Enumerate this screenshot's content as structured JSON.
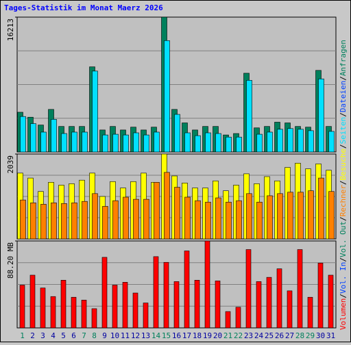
{
  "title": "Tages-Statistik im Monat Maerz 2026",
  "categories": [
    "1",
    "2",
    "3",
    "4",
    "5",
    "6",
    "7",
    "8",
    "9",
    "10",
    "11",
    "12",
    "13",
    "14",
    "15",
    "16",
    "17",
    "18",
    "19",
    "20",
    "21",
    "22",
    "23",
    "24",
    "25",
    "26",
    "27",
    "28",
    "29",
    "30",
    "31"
  ],
  "category_color": "#0000a0",
  "highlight_categories": [
    "1",
    "7",
    "8",
    "14",
    "15",
    "21",
    "22",
    "28",
    "29"
  ],
  "highlight_color": "#00805c",
  "legend_separator": "/",
  "legend_extra": [
    {
      "name": "Dateien",
      "color": "#0040ff"
    },
    {
      "name": "Vol. Out",
      "color": "#00805c"
    },
    {
      "name": "Vol. In",
      "color": "#0040ff"
    }
  ],
  "chart_data": [
    {
      "type": "bar",
      "ylim": [
        0,
        16213
      ],
      "yticks": [
        16213
      ],
      "series": [
        {
          "name": "Anfragen",
          "color": "#00805c",
          "values": [
            4777,
            4180,
            3241,
            5118,
            3071,
            3071,
            3071,
            10236,
            2644,
            3071,
            2644,
            2986,
            2644,
            2986,
            16213,
            5118,
            3497,
            2644,
            3071,
            3071,
            2047,
            2218,
            9468,
            2900,
            3071,
            3583,
            3497,
            3071,
            2986,
            9810,
            3071
          ]
        },
        {
          "name": "Seiten",
          "color": "#00e0ff",
          "values": [
            4265,
            3412,
            2388,
            3924,
            2218,
            2388,
            2388,
            9724,
            2047,
            2133,
            2047,
            2303,
            2047,
            2388,
            13392,
            4521,
            2303,
            1962,
            2303,
            2218,
            1791,
            1791,
            8615,
            2133,
            2388,
            2730,
            2815,
            2730,
            2559,
            8786,
            2474
          ]
        }
      ]
    },
    {
      "type": "bar",
      "ylim": [
        0,
        2039
      ],
      "yticks": [
        2039
      ],
      "series": [
        {
          "name": "Besuche",
          "color": "#ffff00",
          "values": [
            1581,
            1462,
            1139,
            1360,
            1292,
            1326,
            1411,
            1581,
            1020,
            1377,
            1224,
            1377,
            1581,
            1360,
            2039,
            1513,
            1343,
            1224,
            1224,
            1394,
            1156,
            1292,
            1564,
            1326,
            1496,
            1394,
            1717,
            1819,
            1683,
            1802,
            1649
          ]
        },
        {
          "name": "Rechner",
          "color": "#ff8000",
          "values": [
            935,
            867,
            833,
            867,
            850,
            867,
            901,
            1088,
            782,
            918,
            1003,
            952,
            952,
            1360,
            1598,
            1241,
            1003,
            918,
            884,
            986,
            884,
            918,
            1088,
            884,
            1037,
            1088,
            1122,
            1122,
            1156,
            1462,
            1139
          ]
        }
      ]
    },
    {
      "type": "bar",
      "ylim": [
        0,
        88.2
      ],
      "yticks": [
        {
          "value": 88.2,
          "label": "88.20 MB"
        }
      ],
      "series": [
        {
          "name": "Volumen",
          "color": "#ff0000",
          "values": [
            43.4,
            53.5,
            40.5,
            31.8,
            48.4,
            31.1,
            28.2,
            19.5,
            71.6,
            43.4,
            46.3,
            35.4,
            25.3,
            72.3,
            66.5,
            47.0,
            78.1,
            48.4,
            88.2,
            47.7,
            16.6,
            21.0,
            79.5,
            47.0,
            51.3,
            60.0,
            37.6,
            79.5,
            31.1,
            65.8,
            53.5
          ]
        }
      ]
    }
  ]
}
